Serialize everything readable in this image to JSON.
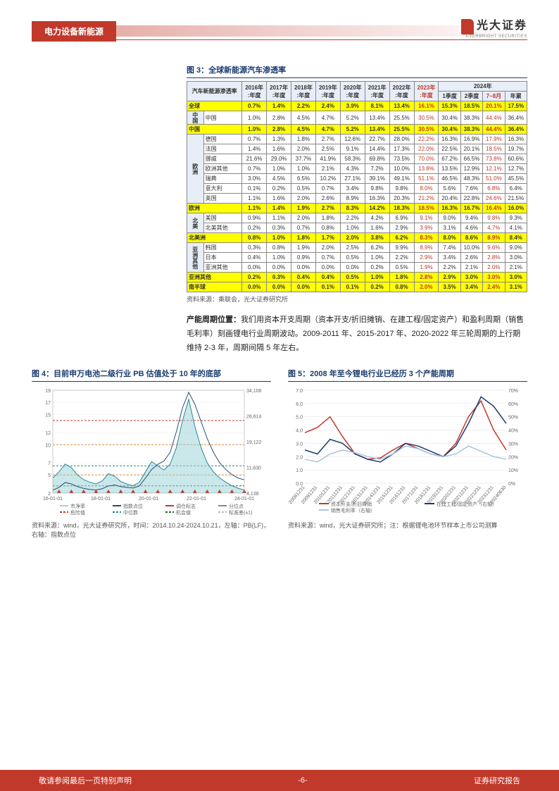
{
  "header": {
    "section": "电力设备新能源",
    "logo_cn": "光大证券",
    "logo_en": "EVERBRIGHT SECURITIES"
  },
  "fig3": {
    "title": "图 3：全球新能源汽车渗透率",
    "source": "资料来源：乘联会，光大证券研究所",
    "header_main": "汽车新能源渗透率",
    "years": [
      "2016年:年度",
      "2017年:年度",
      "2018年:年度",
      "2019年:年度",
      "2020年:年度",
      "2021年:年度",
      "2022年:年度",
      "2023年:年度"
    ],
    "y2024": {
      "group": "2024年",
      "cols": [
        "1季度",
        "2季度",
        "7~8月",
        "年累"
      ]
    },
    "red_col_idx": 7,
    "red_2024_idx": 2,
    "rows": [
      {
        "group": "",
        "name": "全球",
        "hl": true,
        "v": [
          "0.7%",
          "1.4%",
          "2.2%",
          "2.4%",
          "3.9%",
          "8.1%",
          "13.4%",
          "16.1%",
          "15.3%",
          "18.5%",
          "20.1%",
          "17.5%"
        ]
      },
      {
        "group": "中国",
        "name": "中国",
        "hl": false,
        "v": [
          "1.0%",
          "2.8%",
          "4.5%",
          "4.7%",
          "5.2%",
          "13.4%",
          "25.5%",
          "30.5%",
          "30.4%",
          "38.3%",
          "44.4%",
          "36.4%"
        ]
      },
      {
        "group": "",
        "name": "中国",
        "hl": true,
        "v": [
          "1.0%",
          "2.8%",
          "4.5%",
          "4.7%",
          "5.2%",
          "13.4%",
          "25.5%",
          "30.5%",
          "30.4%",
          "38.3%",
          "44.4%",
          "36.4%"
        ]
      },
      {
        "group": "欧洲",
        "name": "德国",
        "hl": false,
        "v": [
          "0.7%",
          "1.3%",
          "1.8%",
          "2.7%",
          "12.6%",
          "22.7%",
          "28.0%",
          "22.2%",
          "16.3%",
          "16.9%",
          "17.9%",
          "16.3%"
        ]
      },
      {
        "group": "欧洲",
        "name": "法国",
        "hl": false,
        "v": [
          "1.4%",
          "1.6%",
          "2.0%",
          "2.5%",
          "9.1%",
          "14.4%",
          "17.3%",
          "22.0%",
          "22.5%",
          "20.1%",
          "18.5%",
          "19.7%"
        ]
      },
      {
        "group": "欧洲",
        "name": "挪威",
        "hl": false,
        "v": [
          "21.6%",
          "29.0%",
          "37.7%",
          "41.9%",
          "58.3%",
          "69.8%",
          "73.5%",
          "70.0%",
          "67.2%",
          "66.5%",
          "73.8%",
          "60.6%"
        ]
      },
      {
        "group": "欧洲",
        "name": "欧洲其他",
        "hl": false,
        "v": [
          "0.7%",
          "1.0%",
          "1.0%",
          "2.1%",
          "4.3%",
          "7.2%",
          "10.0%",
          "13.8%",
          "13.5%",
          "12.9%",
          "12.1%",
          "12.7%"
        ]
      },
      {
        "group": "欧洲",
        "name": "瑞典",
        "hl": false,
        "v": [
          "3.0%",
          "4.5%",
          "6.5%",
          "10.2%",
          "27.1%",
          "39.1%",
          "49.1%",
          "51.1%",
          "46.5%",
          "48.3%",
          "51.0%",
          "45.5%"
        ]
      },
      {
        "group": "欧洲",
        "name": "意大利",
        "hl": false,
        "v": [
          "0.1%",
          "0.2%",
          "0.5%",
          "0.7%",
          "3.4%",
          "9.8%",
          "9.8%",
          "8.0%",
          "5.6%",
          "7.6%",
          "6.8%",
          "6.4%"
        ]
      },
      {
        "group": "欧洲",
        "name": "英国",
        "hl": false,
        "v": [
          "1.1%",
          "1.6%",
          "2.0%",
          "2.6%",
          "8.9%",
          "16.3%",
          "20.3%",
          "21.2%",
          "20.4%",
          "22.8%",
          "24.6%",
          "21.5%"
        ]
      },
      {
        "group": "",
        "name": "欧洲",
        "hl": true,
        "v": [
          "1.1%",
          "1.4%",
          "1.9%",
          "2.7%",
          "8.3%",
          "14.2%",
          "18.3%",
          "18.5%",
          "16.3%",
          "16.7%",
          "16.4%",
          "16.0%"
        ]
      },
      {
        "group": "北美",
        "name": "美国",
        "hl": false,
        "v": [
          "0.9%",
          "1.1%",
          "2.0%",
          "1.8%",
          "2.2%",
          "4.2%",
          "6.9%",
          "9.1%",
          "9.0%",
          "9.4%",
          "9.8%",
          "9.3%"
        ]
      },
      {
        "group": "北美",
        "name": "北美其他",
        "hl": false,
        "v": [
          "0.2%",
          "0.3%",
          "0.7%",
          "0.8%",
          "1.0%",
          "1.6%",
          "2.9%",
          "3.9%",
          "3.1%",
          "4.6%",
          "4.7%",
          "4.1%"
        ]
      },
      {
        "group": "",
        "name": "北美洲",
        "hl": true,
        "v": [
          "0.8%",
          "1.0%",
          "1.8%",
          "1.7%",
          "2.0%",
          "3.8%",
          "6.2%",
          "8.3%",
          "8.0%",
          "8.6%",
          "8.9%",
          "8.4%"
        ]
      },
      {
        "group": "亚洲其他",
        "name": "韩国",
        "hl": false,
        "v": [
          "0.3%",
          "0.8%",
          "1.9%",
          "2.0%",
          "2.5%",
          "6.2%",
          "9.9%",
          "8.9%",
          "7.4%",
          "10.0%",
          "9.6%",
          "9.0%"
        ]
      },
      {
        "group": "亚洲其他",
        "name": "日本",
        "hl": false,
        "v": [
          "0.4%",
          "1.0%",
          "0.9%",
          "0.7%",
          "0.5%",
          "1.0%",
          "2.2%",
          "2.9%",
          "3.4%",
          "2.6%",
          "2.8%",
          "3.0%"
        ]
      },
      {
        "group": "亚洲其他",
        "name": "亚洲其他",
        "hl": false,
        "v": [
          "0.0%",
          "0.0%",
          "0.0%",
          "0.0%",
          "0.0%",
          "0.2%",
          "0.5%",
          "1.9%",
          "2.2%",
          "2.1%",
          "2.0%",
          "2.1%"
        ]
      },
      {
        "group": "",
        "name": "亚洲其他",
        "hl": true,
        "v": [
          "0.2%",
          "0.3%",
          "0.4%",
          "0.4%",
          "0.5%",
          "1.0%",
          "1.8%",
          "2.8%",
          "2.9%",
          "3.0%",
          "3.0%",
          "3.0%"
        ]
      },
      {
        "group": "",
        "name": "南半球",
        "hl": true,
        "v": [
          "0.0%",
          "0.0%",
          "0.0%",
          "0.1%",
          "0.1%",
          "0.2%",
          "0.8%",
          "2.0%",
          "3.5%",
          "3.4%",
          "2.4%",
          "3.1%"
        ]
      }
    ]
  },
  "paragraph": {
    "lead": "产能周期位置：",
    "body": "我们用资本开支周期（资本开支/折旧摊销、在建工程/固定资产）和盈利周期（销售毛利率）刻画锂电行业周期波动。2009-2011 年、2015-2017 年、2020-2022 年三轮周期的上行期维持 2-3 年，周期间隔 5 年左右。"
  },
  "fig4": {
    "title": "图 4：目前申万电池二级行业 PB 估值处于 10 年的底部",
    "source": "资料来源：wind，光大证券研究所，时间：2014.10.24-2024.10.21，左轴：PB(LF)，右轴：指数点位",
    "chart": {
      "type": "line-area",
      "x_ticks": [
        "16-01-01",
        "18-01-01",
        "20-01-01",
        "22-01-01",
        "24-01-01"
      ],
      "left_y": {
        "min": 2,
        "max": 19,
        "ticks": [
          2,
          5,
          7,
          10,
          12,
          15,
          17,
          19
        ]
      },
      "right_y": {
        "min": 4138,
        "max": 34106,
        "ticks": [
          4138,
          11630,
          19122,
          26614,
          34106
        ]
      },
      "colors": {
        "pb_area": "#9fd4d9",
        "pb_line": "#2a8a94",
        "index_line": "#2a4a7a",
        "danger": "#c0392b",
        "mid": "#2a8a94",
        "warn": "#d98c3a",
        "opp": "#1a6e1a",
        "std": "#bbbbbb",
        "markers": "#c0392b"
      },
      "legend": [
        "市净率",
        "指数点位",
        "调仓标志",
        "分位点",
        "危险值",
        "中位数",
        "机会值",
        "标准差(±1)"
      ],
      "pb_series": [
        4.5,
        5.5,
        6.8,
        6.2,
        5.0,
        4.2,
        3.8,
        3.5,
        4.0,
        5.2,
        4.8,
        3.9,
        3.5,
        3.2,
        3.8,
        5.5,
        7.2,
        6.5,
        5.8,
        6.8,
        9.5,
        14.0,
        17.5,
        13.0,
        9.5,
        7.0,
        5.5,
        4.5,
        3.8,
        3.2,
        2.8,
        2.5
      ],
      "idx_series": [
        5000,
        5800,
        7200,
        6800,
        6000,
        5500,
        5200,
        5000,
        5400,
        6200,
        6500,
        6000,
        5800,
        5600,
        6200,
        8500,
        11000,
        12500,
        13500,
        16000,
        22000,
        29000,
        33500,
        30000,
        25000,
        20000,
        16000,
        13000,
        11000,
        9500,
        8500,
        8000
      ],
      "bands": {
        "danger": 14,
        "warn_hi": 10,
        "mid": 6.5,
        "warn_lo": 5,
        "opp": 3.2
      }
    }
  },
  "fig5": {
    "title": "图 5：2008 年至今锂电行业已经历 3 个产能周期",
    "source": "资料来源：wind，光大证券研究所；注：根据锂电池环节样本上市公司测算",
    "chart": {
      "type": "line-dual-axis",
      "x_ticks": [
        "20081231",
        "20091231",
        "20101231",
        "20111231",
        "20121231",
        "20131231",
        "20141231",
        "20151231",
        "20161231",
        "20171231",
        "20181231",
        "20191231",
        "20201231",
        "20211231",
        "20221231",
        "20231231",
        "20240630"
      ],
      "left_y": {
        "min": 0,
        "max": 7,
        "step": 1
      },
      "right_y": {
        "min": 0,
        "max": 70,
        "step": 10,
        "suffix": "%"
      },
      "colors": {
        "capex": "#c0392b",
        "cip": "#1a3a6e",
        "gross": "#a8c4e0",
        "grid": "#dddddd"
      },
      "legend": [
        "资本开支/折旧摊销",
        "在建工程/固定资产（右轴）",
        "销售毛利率（右轴）"
      ],
      "capex": [
        3.8,
        4.2,
        5.0,
        3.5,
        2.2,
        1.8,
        1.9,
        2.5,
        3.0,
        2.6,
        2.2,
        2.0,
        3.0,
        5.0,
        6.2,
        4.0,
        2.5
      ],
      "cip_pct": [
        25,
        22,
        33,
        30,
        22,
        18,
        16,
        22,
        30,
        28,
        24,
        20,
        28,
        45,
        65,
        58,
        45
      ],
      "gm_pct": [
        18,
        16,
        22,
        25,
        23,
        20,
        18,
        22,
        28,
        26,
        22,
        20,
        22,
        28,
        24,
        20,
        18
      ]
    }
  },
  "footer": {
    "left": "敬请参阅最后一页特别声明",
    "center": "-6-",
    "right": "证券研究报告"
  }
}
